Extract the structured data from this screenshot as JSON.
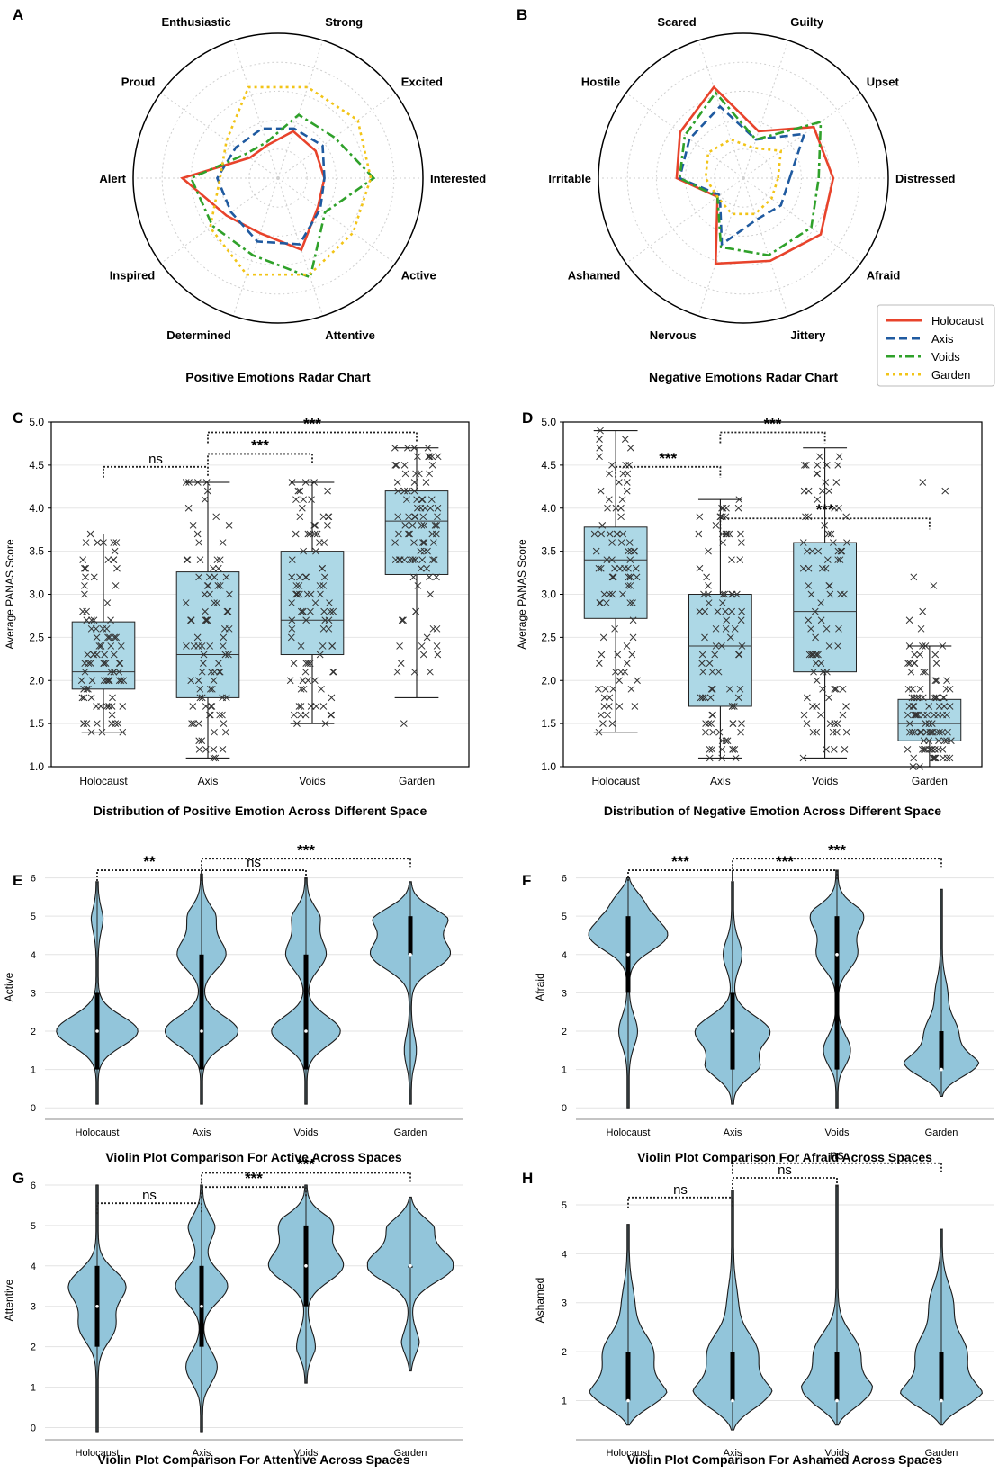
{
  "colors": {
    "holocaust": "#e8432b",
    "axis": "#1f5aa0",
    "voids": "#2fa12a",
    "garden": "#f2c417",
    "box": "#add8e6",
    "violin": "#92c5da"
  },
  "chart_data": [
    {
      "panel": "A",
      "type": "radar",
      "title": "Positive Emotions Radar Chart",
      "axes": [
        "Interested",
        "Excited",
        "Strong",
        "Enthusiastic",
        "Proud",
        "Alert",
        "Inspired",
        "Determined",
        "Attentive",
        "Active"
      ],
      "range": [
        0,
        5
      ],
      "series": [
        {
          "name": "Holocaust",
          "values": [
            1.6,
            1.6,
            1.7,
            1.2,
            1.2,
            3.3,
            2.2,
            2.0,
            2.6,
            1.7
          ]
        },
        {
          "name": "Axis",
          "values": [
            1.6,
            1.9,
            1.8,
            1.8,
            1.8,
            2.1,
            2.0,
            2.3,
            2.4,
            1.8
          ]
        },
        {
          "name": "Voids",
          "values": [
            3.3,
            2.4,
            2.3,
            1.3,
            1.4,
            3.0,
            2.8,
            2.8,
            3.6,
            2.0
          ]
        },
        {
          "name": "Garden",
          "values": [
            3.2,
            3.4,
            3.3,
            3.3,
            2.2,
            2.0,
            2.9,
            3.5,
            3.5,
            3.2
          ]
        }
      ]
    },
    {
      "panel": "B",
      "type": "radar",
      "title": "Negative Emotions Radar Chart",
      "axes": [
        "Distressed",
        "Upset",
        "Guilty",
        "Scared",
        "Hostile",
        "Irritable",
        "Ashamed",
        "Nervous",
        "Jittery",
        "Afraid"
      ],
      "range": [
        0,
        5
      ],
      "series": [
        {
          "name": "Holocaust",
          "values": [
            3.1,
            3.0,
            1.7,
            3.3,
            2.7,
            2.3,
            1.1,
            3.1,
            3.0,
            3.3
          ]
        },
        {
          "name": "Axis",
          "values": [
            1.6,
            2.6,
            1.4,
            2.6,
            2.3,
            2.2,
            1.0,
            2.4,
            1.5,
            1.6
          ]
        },
        {
          "name": "Voids",
          "values": [
            2.6,
            3.3,
            1.4,
            3.1,
            2.5,
            2.2,
            1.1,
            2.5,
            2.8,
            2.9
          ]
        },
        {
          "name": "Garden",
          "values": [
            1.2,
            1.6,
            1.1,
            1.4,
            1.5,
            1.3,
            1.1,
            1.3,
            1.3,
            1.2
          ]
        }
      ]
    },
    {
      "panel": "C",
      "type": "box",
      "title": "Distribution of Positive Emotion Across Different Space",
      "ylabel": "Average PANAS Score",
      "ylim": [
        1.0,
        5.0
      ],
      "yticks": [
        "1.0",
        "1.5",
        "2.0",
        "2.5",
        "3.0",
        "3.5",
        "4.0",
        "4.5",
        "5.0"
      ],
      "categories": [
        "Holocaust",
        "Axis",
        "Voids",
        "Garden"
      ],
      "boxes": [
        {
          "q1": 1.9,
          "median": 2.1,
          "q3": 2.68,
          "wlo": 1.4,
          "whi": 3.7
        },
        {
          "q1": 1.8,
          "median": 2.3,
          "q3": 3.26,
          "wlo": 1.1,
          "whi": 4.3
        },
        {
          "q1": 2.3,
          "median": 2.7,
          "q3": 3.5,
          "wlo": 1.5,
          "whi": 4.3
        },
        {
          "q1": 3.23,
          "median": 3.85,
          "q3": 4.2,
          "wlo": 1.8,
          "whi": 4.7
        }
      ],
      "outliers": [
        [],
        [],
        [],
        [
          1.5
        ]
      ],
      "annotations": [
        {
          "from": 0,
          "to": 1,
          "label": "ns",
          "y": 4.48
        },
        {
          "from": 1,
          "to": 2,
          "label": "***",
          "y": 4.63
        },
        {
          "from": 1,
          "to": 3,
          "label": "***",
          "y": 4.88
        }
      ]
    },
    {
      "panel": "D",
      "type": "box",
      "title": "Distribution of Negative Emotion Across Different Space",
      "ylabel": "Average PANAS Score",
      "ylim": [
        1.0,
        5.0
      ],
      "yticks": [
        "1.0",
        "1.5",
        "2.0",
        "2.5",
        "3.0",
        "3.5",
        "4.0",
        "4.5",
        "5.0"
      ],
      "categories": [
        "Holocaust",
        "Axis",
        "Voids",
        "Garden"
      ],
      "boxes": [
        {
          "q1": 2.72,
          "median": 3.4,
          "q3": 3.78,
          "wlo": 1.4,
          "whi": 4.9
        },
        {
          "q1": 1.7,
          "median": 2.4,
          "q3": 3.0,
          "wlo": 1.1,
          "whi": 4.1
        },
        {
          "q1": 2.1,
          "median": 2.8,
          "q3": 3.6,
          "wlo": 1.1,
          "whi": 4.7
        },
        {
          "q1": 1.3,
          "median": 1.5,
          "q3": 1.78,
          "wlo": 1.0,
          "whi": 2.4
        }
      ],
      "outliers": [
        [],
        [],
        [],
        [
          2.6,
          2.7,
          2.8,
          3.1,
          3.2,
          4.2,
          4.3
        ]
      ],
      "annotations": [
        {
          "from": 0,
          "to": 1,
          "label": "***",
          "y": 4.48
        },
        {
          "from": 1,
          "to": 2,
          "label": "***",
          "y": 4.88
        },
        {
          "from": 1,
          "to": 3,
          "label": "***",
          "y": 3.88
        }
      ]
    },
    {
      "panel": "E",
      "type": "violin",
      "title": "Violin Plot Comparison For Active Across Spaces",
      "ylabel": "Active",
      "ylim": [
        -0.3,
        6.6
      ],
      "yticks": [
        "0",
        "1",
        "2",
        "3",
        "4",
        "5",
        "6"
      ],
      "categories": [
        "Holocaust",
        "Axis",
        "Voids",
        "Garden"
      ],
      "stats": [
        {
          "q1": 1,
          "median": 2,
          "q3": 3,
          "min": 0.1,
          "max": 5.9,
          "peaks": [
            [
              2,
              0.95
            ],
            [
              5,
              0.12
            ]
          ]
        },
        {
          "q1": 1,
          "median": 2,
          "q3": 4,
          "min": 0.1,
          "max": 6.1,
          "peaks": [
            [
              2,
              0.85
            ],
            [
              4,
              0.55
            ],
            [
              5,
              0.3
            ]
          ]
        },
        {
          "q1": 1,
          "median": 2,
          "q3": 4,
          "min": 0.1,
          "max": 6.0,
          "peaks": [
            [
              2,
              0.8
            ],
            [
              4,
              0.45
            ],
            [
              5,
              0.3
            ]
          ]
        },
        {
          "q1": 4,
          "median": 4,
          "q3": 5,
          "min": 0.1,
          "max": 5.9,
          "peaks": [
            [
              4,
              0.9
            ],
            [
              5,
              0.85
            ],
            [
              1.5,
              0.12
            ]
          ]
        }
      ],
      "annotations": [
        {
          "from": 0,
          "to": 1,
          "label": "**",
          "y": 6.2
        },
        {
          "from": 1,
          "to": 2,
          "label": "ns",
          "y": 6.2
        },
        {
          "from": 1,
          "to": 3,
          "label": "***",
          "y": 6.5
        }
      ]
    },
    {
      "panel": "F",
      "type": "violin",
      "title": "Violin Plot Comparison For Afraid Across Spaces",
      "ylabel": "Afraid",
      "ylim": [
        -0.3,
        6.6
      ],
      "yticks": [
        "0",
        "1",
        "2",
        "3",
        "4",
        "5",
        "6"
      ],
      "categories": [
        "Holocaust",
        "Axis",
        "Voids",
        "Garden"
      ],
      "stats": [
        {
          "q1": 3,
          "median": 4,
          "q3": 5,
          "min": 0,
          "max": 6.0,
          "peaks": [
            [
              4.5,
              0.9
            ],
            [
              5.5,
              0.55
            ],
            [
              2,
              0.2
            ]
          ]
        },
        {
          "q1": 1,
          "median": 2,
          "q3": 3,
          "min": 0.1,
          "max": 5.9,
          "peaks": [
            [
              2,
              0.85
            ],
            [
              1,
              0.6
            ],
            [
              4,
              0.2
            ]
          ]
        },
        {
          "q1": 1,
          "median": 4,
          "q3": 5,
          "min": 0,
          "max": 6.2,
          "peaks": [
            [
              5,
              0.6
            ],
            [
              4,
              0.45
            ],
            [
              1.5,
              0.3
            ]
          ]
        },
        {
          "q1": 1,
          "median": 1,
          "q3": 2,
          "min": 0.3,
          "max": 5.7,
          "peaks": [
            [
              1,
              0.95
            ],
            [
              2,
              0.35
            ],
            [
              3,
              0.12
            ]
          ]
        }
      ],
      "annotations": [
        {
          "from": 0,
          "to": 1,
          "label": "***",
          "y": 6.2
        },
        {
          "from": 1,
          "to": 2,
          "label": "***",
          "y": 6.2
        },
        {
          "from": 1,
          "to": 3,
          "label": "***",
          "y": 6.5
        }
      ]
    },
    {
      "panel": "G",
      "type": "violin",
      "title": "Violin Plot Comparison For Attentive Across Spaces",
      "ylabel": "Attentive",
      "ylim": [
        -0.3,
        6.6
      ],
      "yticks": [
        "0",
        "1",
        "2",
        "3",
        "4",
        "5",
        "6"
      ],
      "categories": [
        "Holocaust",
        "Axis",
        "Voids",
        "Garden"
      ],
      "stats": [
        {
          "q1": 2,
          "median": 3,
          "q3": 4,
          "min": -0.1,
          "max": 6.0,
          "peaks": [
            [
              3.5,
              0.65
            ],
            [
              2.5,
              0.4
            ]
          ]
        },
        {
          "q1": 2,
          "median": 3,
          "q3": 4,
          "min": -0.1,
          "max": 6.0,
          "peaks": [
            [
              3.5,
              0.6
            ],
            [
              1.5,
              0.35
            ],
            [
              5,
              0.3
            ]
          ]
        },
        {
          "q1": 3,
          "median": 4,
          "q3": 5,
          "min": 1.1,
          "max": 6.0,
          "peaks": [
            [
              4,
              0.85
            ],
            [
              5,
              0.6
            ],
            [
              2,
              0.2
            ]
          ]
        },
        {
          "q1": 4,
          "median": 4,
          "q3": 4,
          "min": 1.4,
          "max": 5.7,
          "peaks": [
            [
              4,
              1.0
            ],
            [
              5,
              0.5
            ],
            [
              2,
              0.2
            ]
          ]
        }
      ],
      "annotations": [
        {
          "from": 0,
          "to": 1,
          "label": "ns",
          "y": 5.55
        },
        {
          "from": 1,
          "to": 2,
          "label": "***",
          "y": 5.95
        },
        {
          "from": 1,
          "to": 3,
          "label": "***",
          "y": 6.3
        }
      ]
    },
    {
      "panel": "H",
      "type": "violin",
      "title": "Violin Plot Comparison For Ashamed Across Spaces",
      "ylabel": "Ashamed",
      "ylim": [
        0.2,
        5.9
      ],
      "yticks": [
        "1",
        "2",
        "3",
        "4",
        "5"
      ],
      "categories": [
        "Holocaust",
        "Axis",
        "Voids",
        "Garden"
      ],
      "stats": [
        {
          "q1": 1,
          "median": 1,
          "q3": 2,
          "min": 0.5,
          "max": 4.6,
          "peaks": [
            [
              1,
              0.95
            ],
            [
              2,
              0.55
            ],
            [
              3,
              0.12
            ]
          ]
        },
        {
          "q1": 1,
          "median": 1,
          "q3": 2,
          "min": 0.4,
          "max": 5.3,
          "peaks": [
            [
              1,
              1.0
            ],
            [
              2,
              0.55
            ],
            [
              3,
              0.1
            ]
          ]
        },
        {
          "q1": 1,
          "median": 1,
          "q3": 2,
          "min": 0.5,
          "max": 5.4,
          "peaks": [
            [
              1,
              1.0
            ],
            [
              2,
              0.5
            ]
          ]
        },
        {
          "q1": 1,
          "median": 1,
          "q3": 2,
          "min": 0.5,
          "max": 4.5,
          "peaks": [
            [
              1,
              1.0
            ],
            [
              2,
              0.55
            ],
            [
              3,
              0.25
            ]
          ]
        }
      ],
      "annotations": [
        {
          "from": 0,
          "to": 1,
          "label": "ns",
          "y": 5.15
        },
        {
          "from": 1,
          "to": 2,
          "label": "ns",
          "y": 5.55
        },
        {
          "from": 1,
          "to": 3,
          "label": "ns",
          "y": 5.85
        }
      ]
    }
  ],
  "legend": {
    "items": [
      "Holocaust",
      "Axis",
      "Voids",
      "Garden"
    ]
  }
}
